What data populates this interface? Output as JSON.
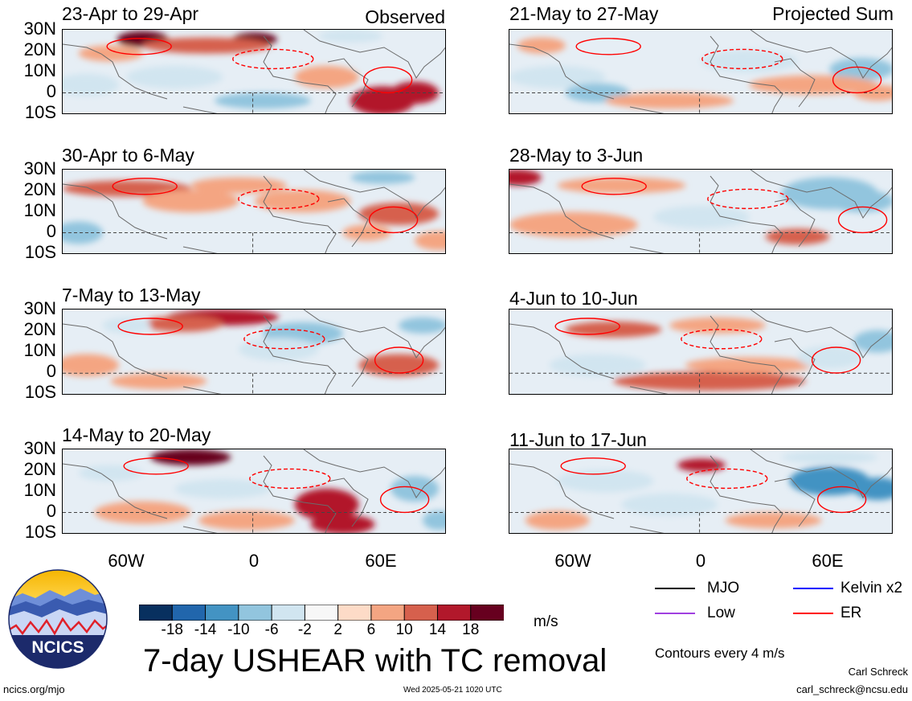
{
  "columns": {
    "observed": "Observed",
    "projected": "Projected Sum"
  },
  "panels": [
    {
      "title": "23-Apr to 29-Apr"
    },
    {
      "title": "30-Apr to 6-May"
    },
    {
      "title": "7-May to 13-May"
    },
    {
      "title": "14-May to 20-May"
    },
    {
      "title": "21-May to 27-May"
    },
    {
      "title": "28-May to 3-Jun"
    },
    {
      "title": "4-Jun to 10-Jun"
    },
    {
      "title": "11-Jun to 17-Jun"
    }
  ],
  "lat_ticks": [
    "30N",
    "20N",
    "10N",
    "0",
    "10S"
  ],
  "lon_ticks": [
    "60W",
    "0",
    "60E"
  ],
  "colorbar": {
    "labels": [
      "-18",
      "-14",
      "-10",
      "-6",
      "-2",
      "2",
      "6",
      "10",
      "14",
      "18"
    ],
    "colors": [
      "#08305f",
      "#2166ac",
      "#4393c3",
      "#92c5de",
      "#d1e5f0",
      "#f7f7f7",
      "#fddbc7",
      "#f4a582",
      "#d6604d",
      "#b2182b",
      "#67001f"
    ],
    "units": "m/s"
  },
  "main_title": "7-day USHEAR with TC removal",
  "legend": {
    "items": [
      {
        "label": "MJO",
        "color": "#000000"
      },
      {
        "label": "Kelvin x2",
        "color": "#0000ff"
      },
      {
        "label": "Low",
        "color": "#a040e0"
      },
      {
        "label": "ER",
        "color": "#ff0000"
      }
    ],
    "contour_note": "Contours every 4 m/s"
  },
  "logo": {
    "text": "NCICS"
  },
  "footer": {
    "url": "ncics.org/mjo",
    "timestamp": "Wed 2025-05-21 1020 UTC",
    "author": "Carl Schreck",
    "email": "carl_schreck@ncsu.edu"
  }
}
